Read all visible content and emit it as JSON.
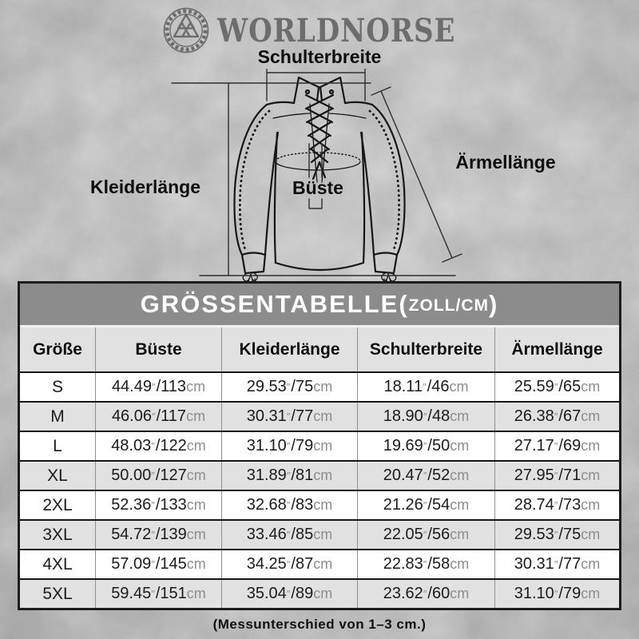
{
  "colors": {
    "background": "#b6b6b6",
    "brand_gray": "#6d6d6d",
    "title_bar": "#8c8c8c",
    "row_alt": "#e1e1e1",
    "ink": "#161616",
    "unit_gray": "#8d8d8d",
    "title_text_color": "#ffffff"
  },
  "header": {
    "brand": "WORLDNORSE",
    "logo_icon": "valknut-knotwork-logo"
  },
  "diagram": {
    "label_schulterbreite": "Schulterbreite",
    "label_kleiderlaenge": "Kleiderlänge",
    "label_bueste": "Büste",
    "label_aermellaenge": "Ärmellänge"
  },
  "size_table": {
    "title_text": "GRÖSSENTABELLE",
    "open_paren": "(",
    "units": "ZOLL/CM",
    "close_paren": ")",
    "columns": [
      "Größe",
      "Büste",
      "Kleiderlänge",
      "Schulterbreite",
      "Ärmellänge"
    ],
    "inch_mark": "″",
    "separator": "/",
    "cm_label": "cm",
    "rows": [
      {
        "size": "S",
        "bust": [
          "44.49",
          "113"
        ],
        "length": [
          "29.53",
          "75"
        ],
        "shoulder": [
          "18.11",
          "46"
        ],
        "sleeve": [
          "25.59",
          "65"
        ]
      },
      {
        "size": "M",
        "bust": [
          "46.06",
          "117"
        ],
        "length": [
          "30.31",
          "77"
        ],
        "shoulder": [
          "18.90",
          "48"
        ],
        "sleeve": [
          "26.38",
          "67"
        ]
      },
      {
        "size": "L",
        "bust": [
          "48.03",
          "122"
        ],
        "length": [
          "31.10",
          "79"
        ],
        "shoulder": [
          "19.69",
          "50"
        ],
        "sleeve": [
          "27.17",
          "69"
        ]
      },
      {
        "size": "XL",
        "bust": [
          "50.00",
          "127"
        ],
        "length": [
          "31.89",
          "81"
        ],
        "shoulder": [
          "20.47",
          "52"
        ],
        "sleeve": [
          "27.95",
          "71"
        ]
      },
      {
        "size": "2XL",
        "bust": [
          "52.36",
          "133"
        ],
        "length": [
          "32.68",
          "83"
        ],
        "shoulder": [
          "21.26",
          "54"
        ],
        "sleeve": [
          "28.74",
          "73"
        ]
      },
      {
        "size": "3XL",
        "bust": [
          "54.72",
          "139"
        ],
        "length": [
          "33.46",
          "85"
        ],
        "shoulder": [
          "22.05",
          "56"
        ],
        "sleeve": [
          "29.53",
          "75"
        ]
      },
      {
        "size": "4XL",
        "bust": [
          "57.09",
          "145"
        ],
        "length": [
          "34.25",
          "87"
        ],
        "shoulder": [
          "22.83",
          "58"
        ],
        "sleeve": [
          "30.31",
          "77"
        ]
      },
      {
        "size": "5XL",
        "bust": [
          "59.45",
          "151"
        ],
        "length": [
          "35.04",
          "89"
        ],
        "shoulder": [
          "23.62",
          "60"
        ],
        "sleeve": [
          "31.10",
          "79"
        ]
      }
    ],
    "footnote": "(Messunterschied von 1–3 cm.)"
  }
}
